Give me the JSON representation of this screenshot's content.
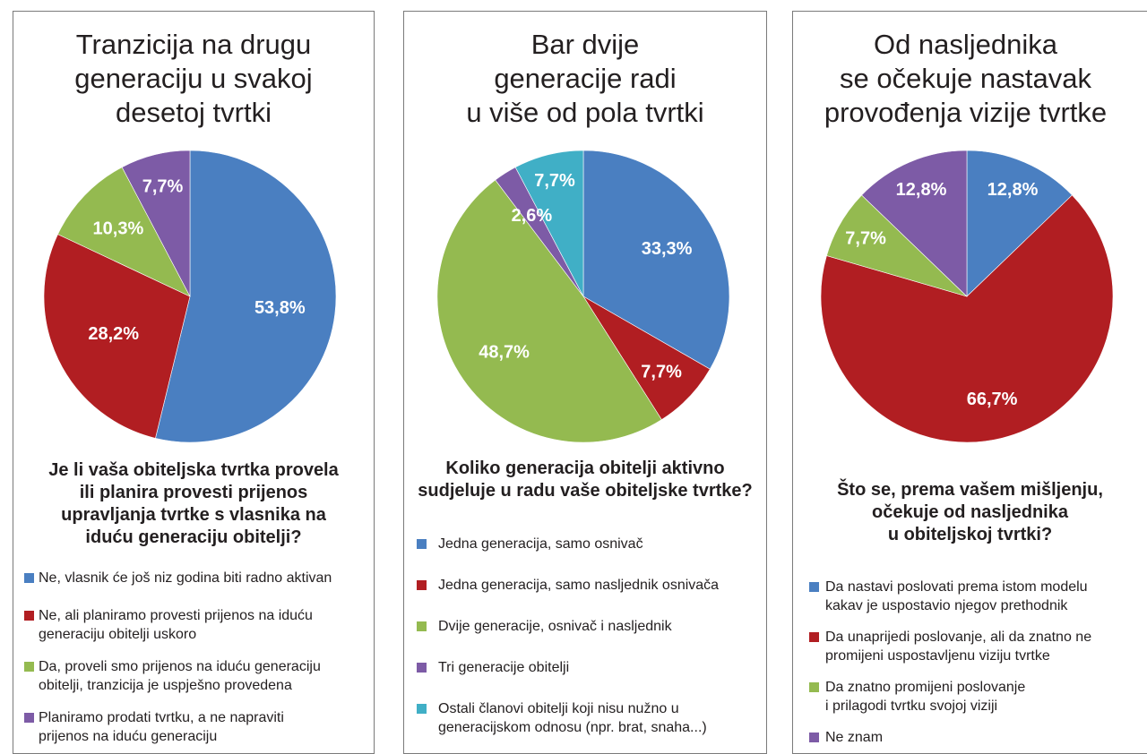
{
  "chart_data": [
    {
      "type": "pie",
      "title": "Tranzicija na drugu generaciju u svakoj desetoj tvrtki",
      "title_lines": [
        "Tranzicija na drugu",
        "generaciju u svakoj",
        "desetoj tvrtki"
      ],
      "question": "Je li vaša obiteljska tvrtka provela ili planira provesti prijenos upravljanja tvrtke s vlasnika na iduću generaciju obitelji?",
      "question_lines": [
        "Je li vaša obiteljska tvrtka provela",
        "ili planira provesti prijenos",
        "upravljanja tvrtke s vlasnika na",
        "iduću generaciju obitelji?"
      ],
      "slices": [
        {
          "label": "Ne, vlasnik će još niz godina biti radno aktivan",
          "label_lines": [
            "Ne, vlasnik će još niz godina biti radno aktivan"
          ],
          "value": 53.8,
          "value_label": "53,8%",
          "color": "#4a7fc1"
        },
        {
          "label": "Ne, ali planiramo provesti prijenos na iduću generaciju obitelji uskoro",
          "label_lines": [
            "Ne, ali planiramo provesti prijenos na iduću",
            "generaciju obitelji uskoro"
          ],
          "value": 28.2,
          "value_label": "28,2%",
          "color": "#b11e22"
        },
        {
          "label": "Da, proveli smo prijenos na iduću generaciju obitelji, tranzicija je uspješno provedena",
          "label_lines": [
            "Da, proveli smo prijenos na iduću generaciju",
            "obitelji, tranzicija je uspješno provedena"
          ],
          "value": 10.3,
          "value_label": "10,3%",
          "color": "#94ba50"
        },
        {
          "label": "Planiramo prodati tvrtku, a ne napraviti prijenos na iduću generaciju",
          "label_lines": [
            "Planiramo prodati tvrtku, a ne napraviti",
            "prijenos na iduću generaciju"
          ],
          "value": 7.7,
          "value_label": "7,7%",
          "color": "#7d5ba6"
        }
      ]
    },
    {
      "type": "pie",
      "title": "Bar dvije generacije radi u više od pola tvrtki",
      "title_lines": [
        "Bar dvije",
        "generacije radi",
        "u više od pola tvrtki"
      ],
      "question": "Koliko generacija obitelji aktivno sudjeluje u radu vaše obiteljske tvrtke?",
      "question_lines": [
        "Koliko generacija obitelji aktivno",
        "sudjeluje u radu vaše obiteljske tvrtke?"
      ],
      "slices": [
        {
          "label": "Jedna generacija, samo osnivač",
          "label_lines": [
            "Jedna generacija, samo osnivač"
          ],
          "value": 33.3,
          "value_label": "33,3%",
          "color": "#4a7fc1"
        },
        {
          "label": "Jedna generacija, samo nasljednik osnivača",
          "label_lines": [
            "Jedna generacija, samo nasljednik osnivača"
          ],
          "value": 7.7,
          "value_label": "7,7%",
          "color": "#b11e22"
        },
        {
          "label": "Dvije generacije, osnivač i nasljednik",
          "label_lines": [
            "Dvije generacije, osnivač i nasljednik"
          ],
          "value": 48.7,
          "value_label": "48,7%",
          "color": "#94ba50"
        },
        {
          "label": "Tri generacije obitelji",
          "label_lines": [
            "Tri generacije obitelji"
          ],
          "value": 2.6,
          "value_label": "2,6%",
          "color": "#7d5ba6"
        },
        {
          "label": "Ostali članovi obitelji koji nisu nužno u generacijskom odnosu (npr. brat, snaha...)",
          "label_lines": [
            "Ostali članovi obitelji koji nisu nužno u",
            "generacijskom odnosu (npr. brat, snaha...)"
          ],
          "value": 7.7,
          "value_label": "7,7%",
          "color": "#40afc6"
        }
      ]
    },
    {
      "type": "pie",
      "title": "Od nasljednika se očekuje nastavak provođenja vizije tvrtke",
      "title_lines": [
        "Od nasljednika",
        "se očekuje nastavak",
        "provođenja vizije tvrtke"
      ],
      "question": "Što se, prema vašem mišljenju, očekuje od nasljednika u obiteljskoj tvrtki?",
      "question_lines": [
        "Što se, prema vašem mišljenju,",
        "očekuje od nasljednika",
        "u obiteljskoj tvrtki?"
      ],
      "slices": [
        {
          "label": "Da nastavi poslovati prema istom modelu kakav je uspostavio njegov prethodnik",
          "label_lines": [
            "Da nastavi poslovati prema istom modelu",
            "kakav je uspostavio njegov prethodnik"
          ],
          "value": 12.8,
          "value_label": "12,8%",
          "color": "#4a7fc1"
        },
        {
          "label": "Da unaprijedi poslovanje, ali da znatno ne promijeni uspostavljenu viziju tvrtke",
          "label_lines": [
            "Da unaprijedi poslovanje, ali da znatno ne",
            "promijeni uspostavljenu viziju tvrtke"
          ],
          "value": 66.7,
          "value_label": "66,7%",
          "color": "#b11e22"
        },
        {
          "label": "Da znatno promijeni poslovanje i prilagodi tvrtku svojoj viziji",
          "label_lines": [
            "Da znatno promijeni poslovanje",
            "i prilagodi tvrtku svojoj viziji"
          ],
          "value": 7.7,
          "value_label": "7,7%",
          "color": "#94ba50"
        },
        {
          "label": "Ne znam",
          "label_lines": [
            "Ne znam"
          ],
          "value": 12.8,
          "value_label": "12,8%",
          "color": "#7d5ba6"
        }
      ]
    }
  ]
}
